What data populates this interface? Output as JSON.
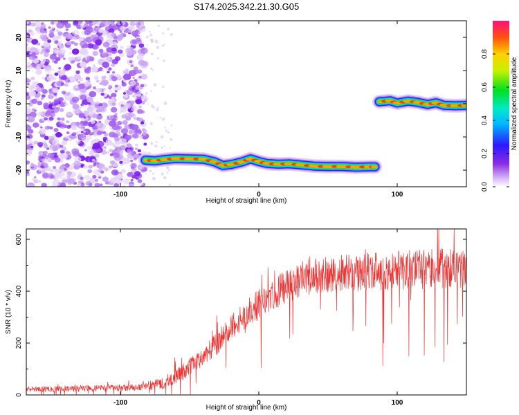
{
  "title": "S174.2025.342.21.30.G05",
  "chart_data": [
    {
      "type": "heatmap",
      "xlabel": "Height of straight line (km)",
      "ylabel": "Frequency (Hz)",
      "xlim": [
        -168,
        150
      ],
      "ylim": [
        -25,
        25
      ],
      "xticks": [
        -100,
        0,
        100
      ],
      "yticks": [
        -20,
        -10,
        0,
        10,
        20
      ],
      "colorbar": {
        "label": "Normalized spectral amplitude",
        "range": [
          0.0,
          1.0
        ],
        "ticks": [
          0.0,
          0.2,
          0.4,
          0.6,
          0.8
        ]
      },
      "regions": [
        {
          "name": "noise",
          "x_range": [
            -168,
            -82
          ],
          "y_range": [
            -25,
            25
          ],
          "amplitude": "low, scattered"
        },
        {
          "name": "signal-track-1",
          "x_range": [
            -84,
            86
          ],
          "freq_at_start": -17,
          "freq_at_end": -19,
          "amplitude": 1.0
        },
        {
          "name": "signal-track-2",
          "x_range": [
            85,
            150
          ],
          "freq_at_start": 1,
          "freq_at_end": -0.5,
          "amplitude": 1.0
        }
      ],
      "ridge": [
        {
          "x": -82,
          "f": -17.0
        },
        {
          "x": -75,
          "f": -17.2
        },
        {
          "x": -68,
          "f": -16.8
        },
        {
          "x": -60,
          "f": -16.5
        },
        {
          "x": -50,
          "f": -16.6
        },
        {
          "x": -40,
          "f": -16.7
        },
        {
          "x": -32,
          "f": -17.5
        },
        {
          "x": -26,
          "f": -18.6
        },
        {
          "x": -20,
          "f": -18.3
        },
        {
          "x": -12,
          "f": -17.5
        },
        {
          "x": -6,
          "f": -16.6
        },
        {
          "x": 0,
          "f": -17.4
        },
        {
          "x": 6,
          "f": -18.0
        },
        {
          "x": 14,
          "f": -18.2
        },
        {
          "x": 22,
          "f": -18.1
        },
        {
          "x": 30,
          "f": -18.4
        },
        {
          "x": 40,
          "f": -18.8
        },
        {
          "x": 50,
          "f": -18.9
        },
        {
          "x": 60,
          "f": -18.9
        },
        {
          "x": 70,
          "f": -19.1
        },
        {
          "x": 80,
          "f": -19.0
        },
        {
          "x": 84,
          "f": -19.0
        }
      ],
      "ridge2": [
        {
          "x": 87,
          "f": 0.6
        },
        {
          "x": 95,
          "f": 0.9
        },
        {
          "x": 100,
          "f": 0.2
        },
        {
          "x": 108,
          "f": 0.8
        },
        {
          "x": 115,
          "f": 0.4
        },
        {
          "x": 122,
          "f": -0.2
        },
        {
          "x": 128,
          "f": 0.3
        },
        {
          "x": 134,
          "f": -0.5
        },
        {
          "x": 142,
          "f": -0.6
        },
        {
          "x": 150,
          "f": -0.5
        }
      ]
    },
    {
      "type": "line",
      "xlabel": "Height of straight line (km)",
      "ylabel": "SNR (10 * v/v)",
      "xlim": [
        -168,
        150
      ],
      "ylim": [
        0,
        640
      ],
      "xticks": [
        -100,
        0,
        100
      ],
      "yticks": [
        0,
        200,
        400,
        600
      ],
      "color": "#ee3333",
      "series": [
        {
          "name": "SNR",
          "trend": [
            {
              "x": -168,
              "y": 22
            },
            {
              "x": -140,
              "y": 24
            },
            {
              "x": -110,
              "y": 26
            },
            {
              "x": -85,
              "y": 30
            },
            {
              "x": -70,
              "y": 45
            },
            {
              "x": -60,
              "y": 70
            },
            {
              "x": -50,
              "y": 105
            },
            {
              "x": -40,
              "y": 150
            },
            {
              "x": -30,
              "y": 200
            },
            {
              "x": -20,
              "y": 255
            },
            {
              "x": -10,
              "y": 305
            },
            {
              "x": 0,
              "y": 350
            },
            {
              "x": 10,
              "y": 390
            },
            {
              "x": 20,
              "y": 420
            },
            {
              "x": 30,
              "y": 445
            },
            {
              "x": 40,
              "y": 460
            },
            {
              "x": 60,
              "y": 470
            },
            {
              "x": 80,
              "y": 475
            },
            {
              "x": 100,
              "y": 480
            },
            {
              "x": 120,
              "y": 485
            },
            {
              "x": 150,
              "y": 490
            }
          ],
          "noise_amplitude": [
            {
              "x": -168,
              "a": 10
            },
            {
              "x": -85,
              "a": 14
            },
            {
              "x": -50,
              "a": 35
            },
            {
              "x": 0,
              "a": 60
            },
            {
              "x": 40,
              "a": 70
            },
            {
              "x": 150,
              "a": 80
            }
          ]
        }
      ]
    }
  ]
}
